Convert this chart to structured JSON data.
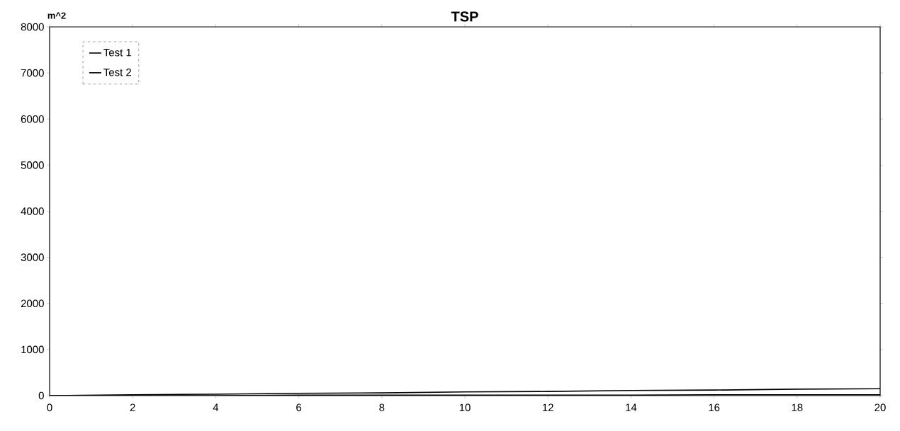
{
  "chart_data": {
    "type": "line",
    "title": "TSP",
    "ylabel": "m^2",
    "x": [
      0,
      2,
      4,
      6,
      8,
      10,
      12,
      14,
      16,
      18,
      20
    ],
    "series": [
      {
        "name": "Test 1",
        "color": "#000000",
        "values": [
          0,
          20,
          30,
          50,
          60,
          80,
          90,
          110,
          120,
          140,
          150
        ]
      },
      {
        "name": "Test 2",
        "color": "#000000",
        "values": [
          0,
          0,
          0,
          10,
          10,
          10,
          10,
          10,
          20,
          20,
          20
        ]
      }
    ],
    "xlim": [
      0,
      20
    ],
    "xticks": [
      0,
      2,
      4,
      6,
      8,
      10,
      12,
      14,
      16,
      18,
      20
    ],
    "ylim": [
      0,
      8000
    ],
    "yticks": [
      0,
      1000,
      2000,
      3000,
      4000,
      5000,
      6000,
      7000,
      8000
    ],
    "grid": false,
    "legend": "top left",
    "marker": "none",
    "line_style": "solid"
  }
}
